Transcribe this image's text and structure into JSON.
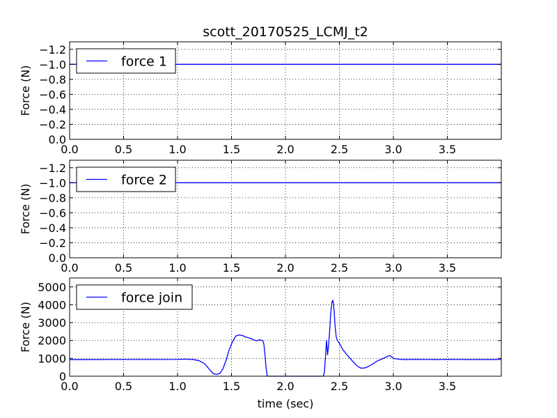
{
  "figure": {
    "title": "scott_20170525_LCMJ_t2",
    "xlabel": "time (sec)"
  },
  "chart_data": [
    {
      "type": "line",
      "ylabel": "Force (N)",
      "xlim": [
        0,
        4.0
      ],
      "ylim": [
        0,
        -1.3
      ],
      "y_inverted": true,
      "grid": true,
      "legend_placement": "top-left",
      "xticks": [
        0.0,
        0.5,
        1.0,
        1.5,
        2.0,
        2.5,
        3.0,
        3.5
      ],
      "xtick_labels": [
        "0.0",
        "0.5",
        "1.0",
        "1.5",
        "2.0",
        "2.5",
        "3.0",
        "3.5"
      ],
      "yticks": [
        -1.2,
        -1.0,
        -0.8,
        -0.6,
        -0.4,
        -0.2,
        0.0
      ],
      "ytick_labels": [
        "−1.2",
        "−1.0",
        "−0.8",
        "−0.6",
        "−0.4",
        "−0.2",
        "0.0"
      ],
      "series": [
        {
          "name": "force 1",
          "color": "#0000ff",
          "x": [
            0.0,
            4.0
          ],
          "y": [
            -1.0,
            -1.0
          ]
        }
      ]
    },
    {
      "type": "line",
      "ylabel": "Force (N)",
      "xlim": [
        0,
        4.0
      ],
      "ylim": [
        0,
        -1.3
      ],
      "y_inverted": true,
      "grid": true,
      "legend_placement": "top-left",
      "xticks": [
        0.0,
        0.5,
        1.0,
        1.5,
        2.0,
        2.5,
        3.0,
        3.5
      ],
      "xtick_labels": [
        "0.0",
        "0.5",
        "1.0",
        "1.5",
        "2.0",
        "2.5",
        "3.0",
        "3.5"
      ],
      "yticks": [
        -1.2,
        -1.0,
        -0.8,
        -0.6,
        -0.4,
        -0.2,
        0.0
      ],
      "ytick_labels": [
        "−1.2",
        "−1.0",
        "−0.8",
        "−0.6",
        "−0.4",
        "−0.2",
        "0.0"
      ],
      "series": [
        {
          "name": "force 2",
          "color": "#0000ff",
          "x": [
            0.0,
            4.0
          ],
          "y": [
            -1.0,
            -1.0
          ]
        }
      ]
    },
    {
      "type": "line",
      "ylabel": "Force (N)",
      "xlim": [
        0,
        4.0
      ],
      "ylim": [
        0,
        5500
      ],
      "grid": true,
      "legend_placement": "top-left",
      "xticks": [
        0.0,
        0.5,
        1.0,
        1.5,
        2.0,
        2.5,
        3.0,
        3.5
      ],
      "xtick_labels": [
        "0.0",
        "0.5",
        "1.0",
        "1.5",
        "2.0",
        "2.5",
        "3.0",
        "3.5"
      ],
      "yticks": [
        0,
        1000,
        2000,
        3000,
        4000,
        5000
      ],
      "ytick_labels": [
        "0",
        "1000",
        "2000",
        "3000",
        "4000",
        "5000"
      ],
      "series": [
        {
          "name": "force join",
          "color": "#0000ff",
          "x": [
            0.0,
            0.2,
            0.4,
            0.6,
            0.8,
            1.0,
            1.05,
            1.1,
            1.15,
            1.2,
            1.25,
            1.3,
            1.33,
            1.36,
            1.39,
            1.42,
            1.45,
            1.48,
            1.51,
            1.54,
            1.57,
            1.6,
            1.63,
            1.66,
            1.7,
            1.73,
            1.76,
            1.79,
            1.8,
            1.81,
            1.82,
            1.83,
            1.84,
            1.85,
            1.9,
            2.0,
            2.1,
            2.2,
            2.3,
            2.35,
            2.36,
            2.37,
            2.38,
            2.39,
            2.4,
            2.41,
            2.42,
            2.43,
            2.44,
            2.45,
            2.46,
            2.47,
            2.48,
            2.5,
            2.53,
            2.57,
            2.62,
            2.67,
            2.7,
            2.73,
            2.76,
            2.8,
            2.85,
            2.9,
            2.95,
            2.97,
            3.0,
            3.05,
            3.1,
            3.2,
            3.3,
            3.4,
            3.5,
            3.6,
            3.7,
            3.8,
            3.9,
            4.0
          ],
          "y": [
            930,
            930,
            935,
            935,
            935,
            940,
            950,
            950,
            930,
            870,
            700,
            350,
            150,
            100,
            150,
            400,
            900,
            1500,
            1950,
            2250,
            2310,
            2280,
            2200,
            2150,
            2050,
            1980,
            2040,
            2000,
            1800,
            1200,
            500,
            30,
            0,
            0,
            0,
            0,
            0,
            0,
            0,
            0,
            200,
            1000,
            2000,
            1200,
            1800,
            2600,
            3600,
            4150,
            4250,
            3700,
            2800,
            2200,
            2000,
            1850,
            1500,
            1200,
            850,
            550,
            450,
            460,
            520,
            650,
            850,
            980,
            1120,
            1150,
            1000,
            950,
            930,
            940,
            935,
            930,
            940,
            935,
            930,
            935,
            930,
            940
          ]
        }
      ]
    }
  ]
}
